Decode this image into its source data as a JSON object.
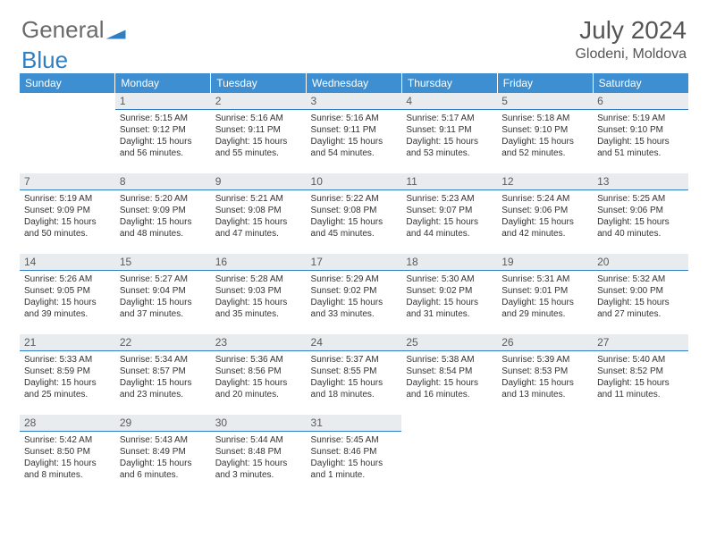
{
  "logo": {
    "general": "General",
    "blue": "Blue"
  },
  "header": {
    "month": "July 2024",
    "location": "Glodeni, Moldova"
  },
  "colors": {
    "brand": "#3d8fd1",
    "text": "#333333",
    "headerText": "#555555",
    "dayBg": "#e9ecef"
  },
  "weekdays": [
    "Sunday",
    "Monday",
    "Tuesday",
    "Wednesday",
    "Thursday",
    "Friday",
    "Saturday"
  ],
  "weeks": [
    [
      null,
      {
        "n": "1",
        "sr": "5:15 AM",
        "ss": "9:12 PM",
        "dl": "15 hours and 56 minutes."
      },
      {
        "n": "2",
        "sr": "5:16 AM",
        "ss": "9:11 PM",
        "dl": "15 hours and 55 minutes."
      },
      {
        "n": "3",
        "sr": "5:16 AM",
        "ss": "9:11 PM",
        "dl": "15 hours and 54 minutes."
      },
      {
        "n": "4",
        "sr": "5:17 AM",
        "ss": "9:11 PM",
        "dl": "15 hours and 53 minutes."
      },
      {
        "n": "5",
        "sr": "5:18 AM",
        "ss": "9:10 PM",
        "dl": "15 hours and 52 minutes."
      },
      {
        "n": "6",
        "sr": "5:19 AM",
        "ss": "9:10 PM",
        "dl": "15 hours and 51 minutes."
      }
    ],
    [
      {
        "n": "7",
        "sr": "5:19 AM",
        "ss": "9:09 PM",
        "dl": "15 hours and 50 minutes."
      },
      {
        "n": "8",
        "sr": "5:20 AM",
        "ss": "9:09 PM",
        "dl": "15 hours and 48 minutes."
      },
      {
        "n": "9",
        "sr": "5:21 AM",
        "ss": "9:08 PM",
        "dl": "15 hours and 47 minutes."
      },
      {
        "n": "10",
        "sr": "5:22 AM",
        "ss": "9:08 PM",
        "dl": "15 hours and 45 minutes."
      },
      {
        "n": "11",
        "sr": "5:23 AM",
        "ss": "9:07 PM",
        "dl": "15 hours and 44 minutes."
      },
      {
        "n": "12",
        "sr": "5:24 AM",
        "ss": "9:06 PM",
        "dl": "15 hours and 42 minutes."
      },
      {
        "n": "13",
        "sr": "5:25 AM",
        "ss": "9:06 PM",
        "dl": "15 hours and 40 minutes."
      }
    ],
    [
      {
        "n": "14",
        "sr": "5:26 AM",
        "ss": "9:05 PM",
        "dl": "15 hours and 39 minutes."
      },
      {
        "n": "15",
        "sr": "5:27 AM",
        "ss": "9:04 PM",
        "dl": "15 hours and 37 minutes."
      },
      {
        "n": "16",
        "sr": "5:28 AM",
        "ss": "9:03 PM",
        "dl": "15 hours and 35 minutes."
      },
      {
        "n": "17",
        "sr": "5:29 AM",
        "ss": "9:02 PM",
        "dl": "15 hours and 33 minutes."
      },
      {
        "n": "18",
        "sr": "5:30 AM",
        "ss": "9:02 PM",
        "dl": "15 hours and 31 minutes."
      },
      {
        "n": "19",
        "sr": "5:31 AM",
        "ss": "9:01 PM",
        "dl": "15 hours and 29 minutes."
      },
      {
        "n": "20",
        "sr": "5:32 AM",
        "ss": "9:00 PM",
        "dl": "15 hours and 27 minutes."
      }
    ],
    [
      {
        "n": "21",
        "sr": "5:33 AM",
        "ss": "8:59 PM",
        "dl": "15 hours and 25 minutes."
      },
      {
        "n": "22",
        "sr": "5:34 AM",
        "ss": "8:57 PM",
        "dl": "15 hours and 23 minutes."
      },
      {
        "n": "23",
        "sr": "5:36 AM",
        "ss": "8:56 PM",
        "dl": "15 hours and 20 minutes."
      },
      {
        "n": "24",
        "sr": "5:37 AM",
        "ss": "8:55 PM",
        "dl": "15 hours and 18 minutes."
      },
      {
        "n": "25",
        "sr": "5:38 AM",
        "ss": "8:54 PM",
        "dl": "15 hours and 16 minutes."
      },
      {
        "n": "26",
        "sr": "5:39 AM",
        "ss": "8:53 PM",
        "dl": "15 hours and 13 minutes."
      },
      {
        "n": "27",
        "sr": "5:40 AM",
        "ss": "8:52 PM",
        "dl": "15 hours and 11 minutes."
      }
    ],
    [
      {
        "n": "28",
        "sr": "5:42 AM",
        "ss": "8:50 PM",
        "dl": "15 hours and 8 minutes."
      },
      {
        "n": "29",
        "sr": "5:43 AM",
        "ss": "8:49 PM",
        "dl": "15 hours and 6 minutes."
      },
      {
        "n": "30",
        "sr": "5:44 AM",
        "ss": "8:48 PM",
        "dl": "15 hours and 3 minutes."
      },
      {
        "n": "31",
        "sr": "5:45 AM",
        "ss": "8:46 PM",
        "dl": "15 hours and 1 minute."
      },
      null,
      null,
      null
    ]
  ],
  "labels": {
    "sunrise": "Sunrise: ",
    "sunset": "Sunset: ",
    "daylight": "Daylight: "
  }
}
